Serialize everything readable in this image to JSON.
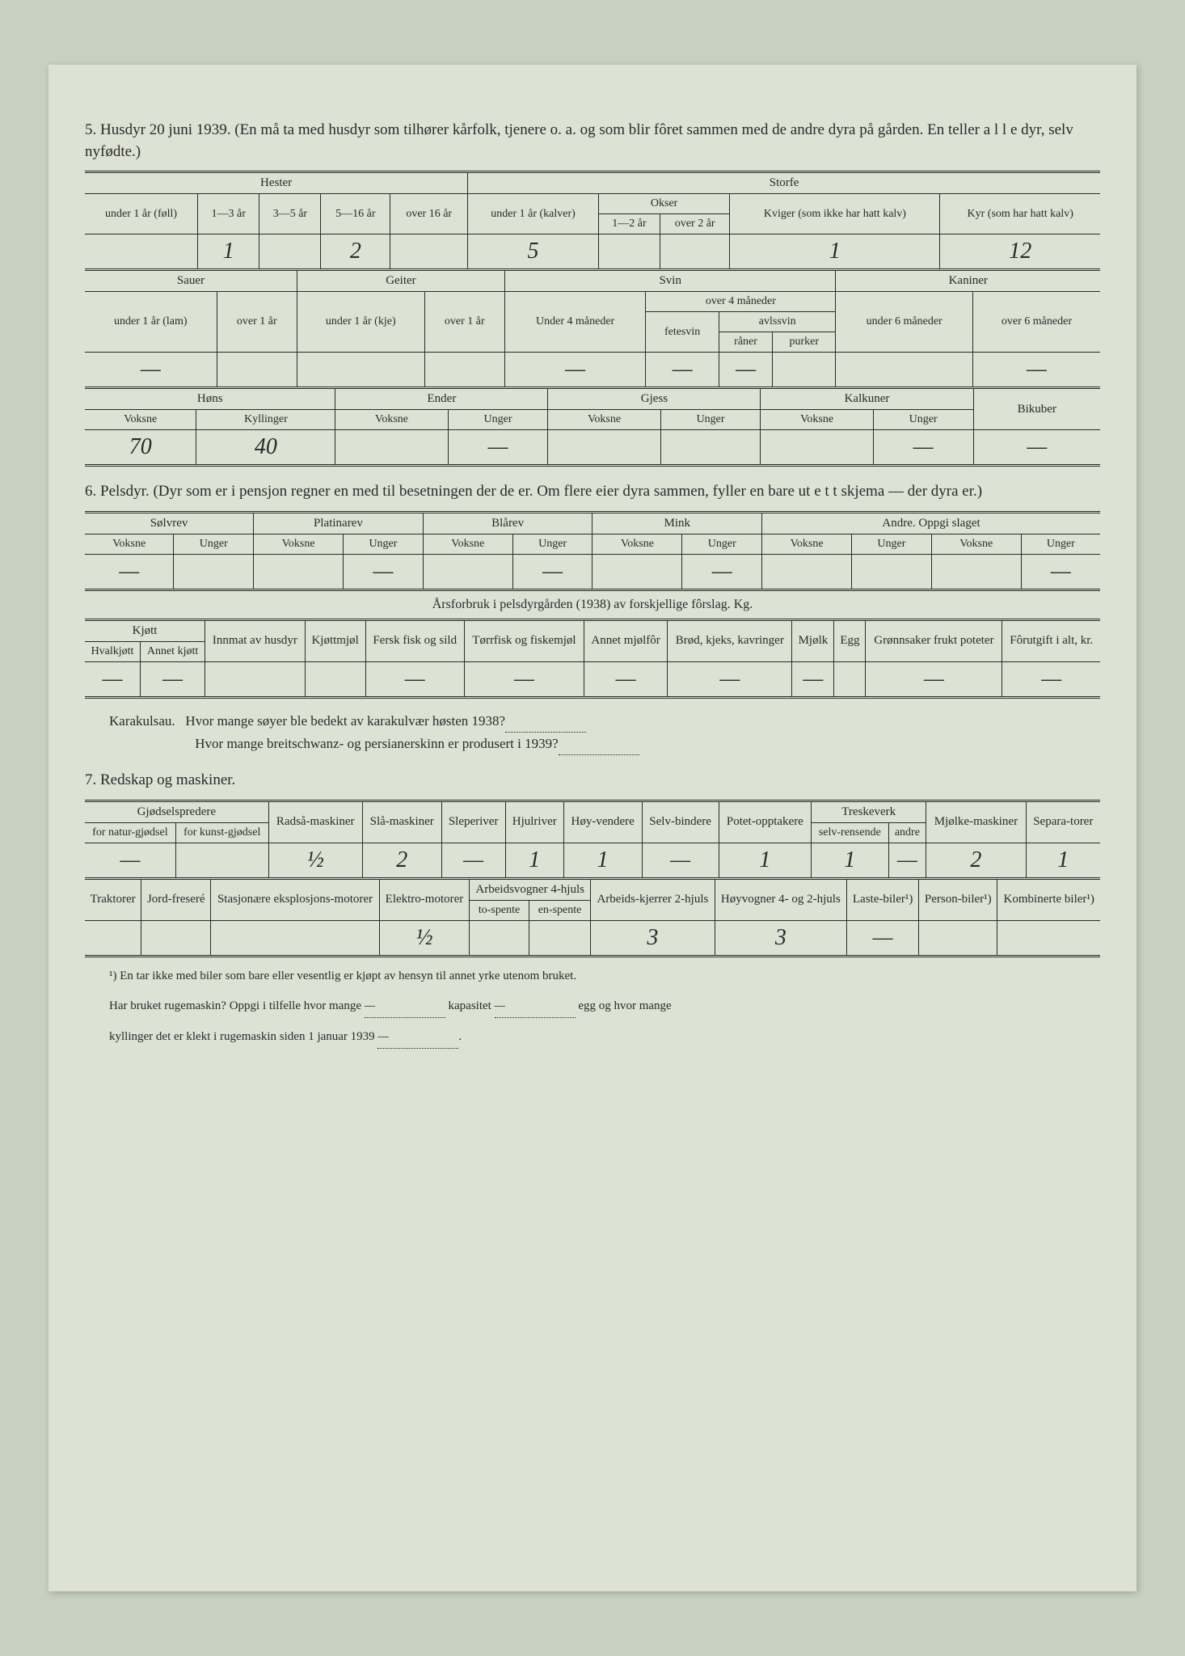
{
  "colors": {
    "paper_bg": "#dde2d4",
    "outer_bg": "#c8d0c0",
    "text": "#2a2a2a",
    "rule": "#2a2a2a"
  },
  "typography": {
    "body_family": "Georgia, Times New Roman, serif",
    "handwriting_family": "Brush Script MT, cursive",
    "header_size_pt": 14,
    "cell_size_pt": 12
  },
  "section5": {
    "num": "5.",
    "title": "Husdyr 20 juni 1939.  (En må ta med husdyr som tilhører kårfolk, tjenere o. a. og som blir fôret sammen med de andre dyra på gården.  En teller a l l e dyr, selv nyfødte.)",
    "table1": {
      "groups": [
        "Hester",
        "Storfe"
      ],
      "hester_cols": [
        "under 1 år (føll)",
        "1—3 år",
        "3—5 år",
        "5—16 år",
        "over 16 år"
      ],
      "storfe_cols": [
        "under 1 år (kalver)"
      ],
      "okser_label": "Okser",
      "okser_sub": [
        "1—2 år",
        "over 2 år"
      ],
      "kviger": "Kviger (som ikke har hatt kalv)",
      "kyr": "Kyr (som har hatt kalv)",
      "values": [
        "",
        "1",
        "",
        "2",
        "",
        "5",
        "",
        "",
        "1",
        "12"
      ]
    },
    "table2": {
      "groups": [
        "Sauer",
        "Geiter",
        "Svin",
        "Kaniner"
      ],
      "sauer_cols": [
        "under 1 år (lam)",
        "over 1 år"
      ],
      "geiter_cols": [
        "under 1 år (kje)",
        "over 1 år"
      ],
      "svin_under": "Under 4 måneder",
      "svin_over": "over 4 måneder",
      "svin_fete": "fetesvin",
      "svin_avls": "avlssvin",
      "svin_sub": [
        "råner",
        "purker"
      ],
      "kaniner_cols": [
        "under 6 måneder",
        "over 6 måneder"
      ],
      "values": [
        "—",
        "",
        "",
        "",
        "—",
        "—",
        "—",
        "",
        "",
        "—"
      ]
    },
    "table3": {
      "groups": [
        "Høns",
        "Ender",
        "Gjess",
        "Kalkuner",
        "Bikuber"
      ],
      "sub": [
        "Voksne",
        "Kyllinger",
        "Voksne",
        "Unger",
        "Voksne",
        "Unger",
        "Voksne",
        "Unger",
        ""
      ],
      "values": [
        "70",
        "40",
        "",
        "—",
        "",
        "",
        "",
        "—",
        "—"
      ]
    }
  },
  "section6": {
    "num": "6.",
    "title": "Pelsdyr.  (Dyr som er i pensjon regner en med til besetningen der de er.  Om flere eier dyra sammen, fyller en bare ut e t t skjema — der dyra er.)",
    "table1": {
      "groups": [
        "Sølvrev",
        "Platinarev",
        "Blårev",
        "Mink"
      ],
      "andre_label": "Andre.  Oppgi slaget",
      "sub": [
        "Voksne",
        "Unger"
      ],
      "values": [
        "—",
        "",
        "",
        "—",
        "",
        "—",
        "",
        "—",
        "",
        "",
        "",
        "—"
      ]
    },
    "caption": "Årsforbruk i pelsdyrgården (1938) av forskjellige fôrslag.  Kg.",
    "table2": {
      "kjott_label": "Kjøtt",
      "kjott_sub": [
        "Hvalkjøtt",
        "Annet kjøtt"
      ],
      "cols": [
        "Innmat av husdyr",
        "Kjøttmjøl",
        "Fersk fisk og sild",
        "Tørrfisk og fiskemjøl",
        "Annet mjølfôr",
        "Brød, kjeks, kavringer",
        "Mjølk",
        "Egg",
        "Grønnsaker frukt poteter",
        "Fôrutgift i alt, kr."
      ],
      "values": [
        "—",
        "—",
        "",
        "",
        "—",
        "—",
        "—",
        "—",
        "—",
        "",
        "—",
        "—"
      ]
    },
    "karakul": {
      "label": "Karakulsau.",
      "q1": "Hvor mange søyer ble bedekt av karakulvær høsten 1938?",
      "q2": "Hvor mange breitschwanz- og persianerskinn er produsert i 1939?"
    }
  },
  "section7": {
    "num": "7.",
    "title": "Redskap og maskiner.",
    "table1": {
      "gjodsel_label": "Gjødselspredere",
      "gjodsel_sub": [
        "for natur-gjødsel",
        "for kunst-gjødsel"
      ],
      "cols": [
        "Radså-maskiner",
        "Slå-maskiner",
        "Sleperiver",
        "Hjulriver",
        "Høy-vendere",
        "Selv-bindere",
        "Potet-opptakere"
      ],
      "treske_label": "Treskeverk",
      "treske_sub": [
        "selv-rensende",
        "andre"
      ],
      "cols2": [
        "Mjølke-maskiner",
        "Separa-torer"
      ],
      "values": [
        "—",
        "",
        "½",
        "2",
        "—",
        "1",
        "1",
        "—",
        "1",
        "1",
        "—",
        "2",
        "1"
      ]
    },
    "table2": {
      "cols": [
        "Traktorer",
        "Jord-freseré",
        "Stasjonære eksplosjons-motorer",
        "Elektro-motorer"
      ],
      "arbeid_label": "Arbeidsvogner 4-hjuls",
      "arbeid_sub": [
        "to-spente",
        "en-spente"
      ],
      "cols2": [
        "Arbeids-kjerrer 2-hjuls",
        "Høyvogner 4- og 2-hjuls",
        "Laste-biler¹)",
        "Person-biler¹)",
        "Kombinerte biler¹)"
      ],
      "values": [
        "",
        "",
        "",
        "½",
        "",
        "",
        "3",
        "3",
        "—",
        "",
        ""
      ]
    },
    "footnote1": "¹) En tar ikke med biler som bare eller vesentlig er kjøpt av hensyn til annet yrke utenom bruket.",
    "footnote2a": "Har bruket rugemaskin?  Oppgi i tilfelle hvor mange",
    "footnote2b": "kapasitet",
    "footnote2c": "egg og hvor mange",
    "footnote3": "kyllinger det er klekt i rugemaskin siden 1 januar 1939",
    "hw_dash1": "—",
    "hw_dash2": "—",
    "hw_dash3": "—"
  }
}
